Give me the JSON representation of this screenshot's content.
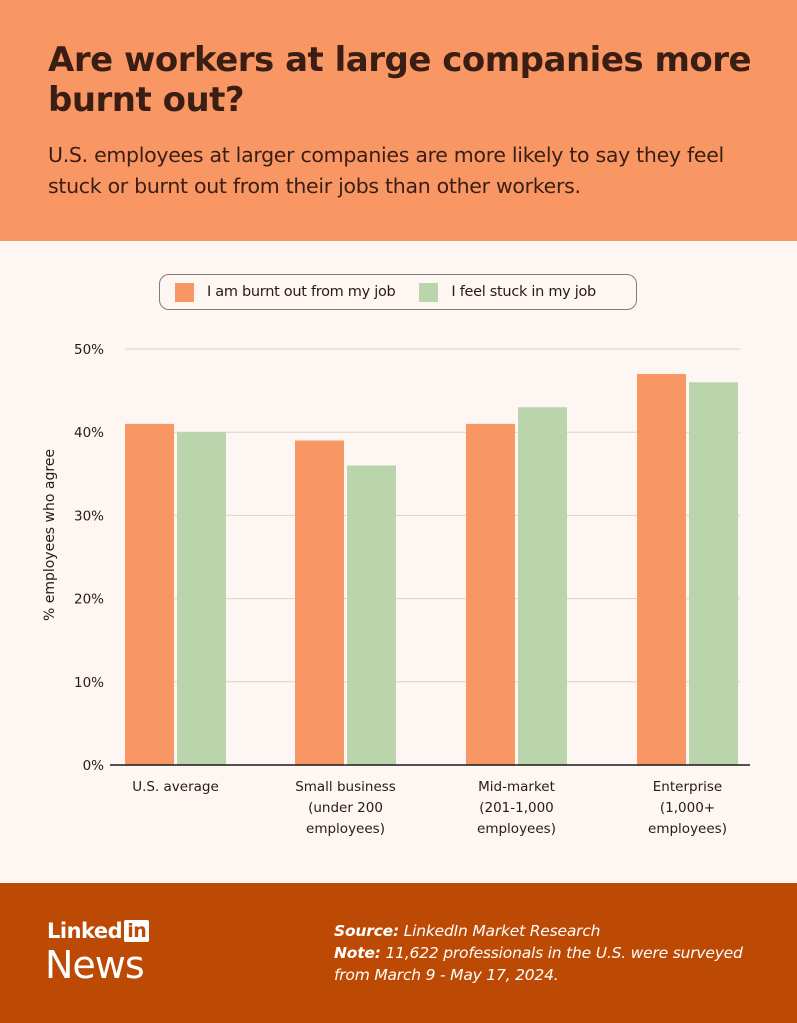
{
  "header": {
    "title": "Are workers at large companies more burnt out?",
    "subtitle": "U.S. employees at larger companies are more likely to say they feel stuck or burnt out from their jobs than other workers."
  },
  "colors": {
    "header_bg": "#f89763",
    "footer_bg": "#bd4a04",
    "burnt_out": "#f89763",
    "stuck": "#bad5ac"
  },
  "chart_data": {
    "type": "bar",
    "title": "Are workers at large companies more burnt out?",
    "xlabel": "",
    "ylabel": "% employees who agree",
    "ylim": [
      0,
      50
    ],
    "yticks": [
      "0%",
      "10%",
      "20%",
      "30%",
      "40%",
      "50%"
    ],
    "ytick_values": [
      0,
      10,
      20,
      30,
      40,
      50
    ],
    "grid": true,
    "legend_position": "top-center",
    "categories": [
      [
        "U.S. average"
      ],
      [
        "Small business",
        "(under 200",
        "employees)"
      ],
      [
        "Mid-market",
        "(201-1,000",
        "employees)"
      ],
      [
        "Enterprise",
        "(1,000+",
        "employees)"
      ]
    ],
    "series": [
      {
        "name": "I am burnt out from my job",
        "color": "#f89763",
        "values": [
          41,
          39,
          41,
          47
        ]
      },
      {
        "name": "I feel stuck in my job",
        "color": "#bad5ac",
        "values": [
          40,
          36,
          43,
          46
        ]
      }
    ]
  },
  "footer": {
    "logo_linked": "Linked",
    "logo_in": "in",
    "logo_news": "News",
    "source_label": "Source:",
    "source_text": " LinkedIn Market Research",
    "note_label": "Note:",
    "note_text": " 11,622 professionals in the U.S. were surveyed from March 9 - May 17, 2024."
  }
}
